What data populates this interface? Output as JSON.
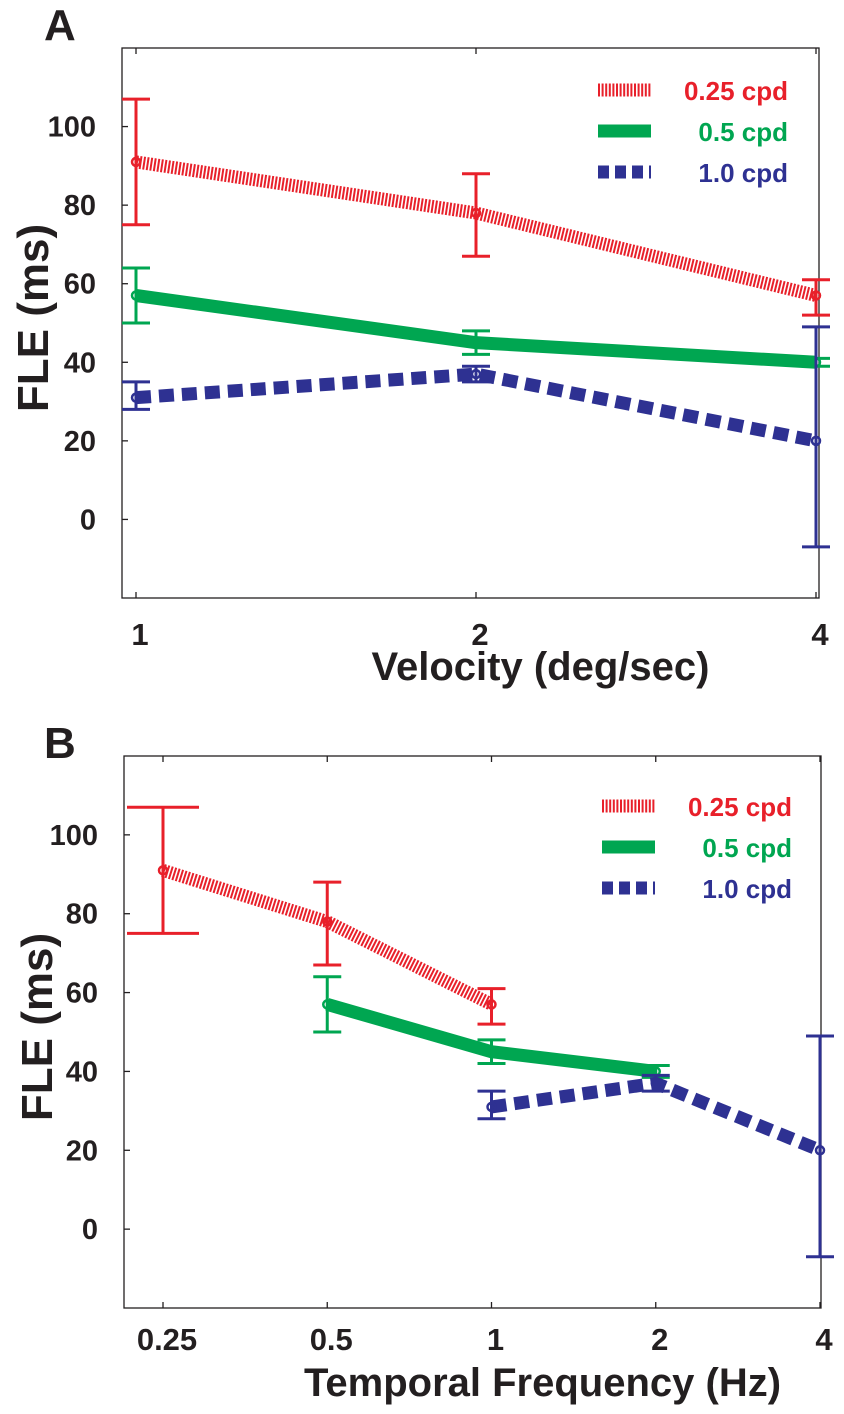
{
  "colors": {
    "0.25 cpd": "#e8202a",
    "0.5 cpd": "#00a651",
    "1.0 cpd": "#2e3192",
    "axis": "#231f20"
  },
  "chart_data": [
    {
      "panel_label": "A",
      "type": "line",
      "xlabel": "Velocity (deg/sec)",
      "ylabel": "FLE (ms)",
      "x_scale": "log2",
      "xlim": [
        1,
        4
      ],
      "ylim": [
        -20,
        120
      ],
      "xticks": [
        1,
        2,
        4
      ],
      "xtick_labels": [
        "1",
        "2",
        "4"
      ],
      "yticks": [
        0,
        20,
        40,
        60,
        80,
        100
      ],
      "yticklabels": [
        "0",
        "20",
        "40",
        "60",
        "80",
        "100"
      ],
      "grid": false,
      "legend_position": "top-right",
      "series": [
        {
          "name": "0.25 cpd",
          "style": "hatched",
          "x": [
            1,
            2,
            4
          ],
          "y": [
            91,
            78,
            57
          ],
          "err_low": [
            75,
            67,
            52
          ],
          "err_high": [
            107,
            88,
            61
          ]
        },
        {
          "name": "0.5 cpd",
          "style": "solid",
          "x": [
            1,
            2,
            4
          ],
          "y": [
            57,
            45,
            40
          ],
          "err_low": [
            50,
            42,
            39
          ],
          "err_high": [
            64,
            48,
            41
          ]
        },
        {
          "name": "1.0 cpd",
          "style": "dashed",
          "x": [
            1,
            2,
            4
          ],
          "y": [
            31,
            37,
            20
          ],
          "err_low": [
            28,
            35,
            -7
          ],
          "err_high": [
            35,
            39,
            49
          ]
        }
      ]
    },
    {
      "panel_label": "B",
      "type": "line",
      "xlabel": "Temporal Frequency (Hz)",
      "ylabel": "FLE (ms)",
      "x_scale": "log2",
      "xlim": [
        0.25,
        4
      ],
      "ylim": [
        -20,
        120
      ],
      "xticks": [
        0.25,
        0.5,
        1,
        2,
        4
      ],
      "xtick_labels": [
        "0.25",
        "0.5",
        "1",
        "2",
        "4"
      ],
      "yticks": [
        0,
        20,
        40,
        60,
        80,
        100
      ],
      "yticklabels": [
        "0",
        "20",
        "40",
        "60",
        "80",
        "100"
      ],
      "grid": false,
      "legend_position": "top-right",
      "series": [
        {
          "name": "0.25 cpd",
          "style": "hatched",
          "x": [
            0.25,
            0.5,
            1
          ],
          "y": [
            91,
            78,
            57
          ],
          "err_low": [
            75,
            67,
            52
          ],
          "err_high": [
            107,
            88,
            61
          ]
        },
        {
          "name": "0.5 cpd",
          "style": "solid",
          "x": [
            0.5,
            1,
            2
          ],
          "y": [
            57,
            45,
            40
          ],
          "err_low": [
            50,
            42,
            38.5
          ],
          "err_high": [
            64,
            48,
            41.5
          ]
        },
        {
          "name": "1.0 cpd",
          "style": "dashed",
          "x": [
            1,
            2,
            4
          ],
          "y": [
            31,
            37,
            20
          ],
          "err_low": [
            28,
            35,
            -7
          ],
          "err_high": [
            35,
            39,
            49
          ]
        }
      ]
    }
  ]
}
